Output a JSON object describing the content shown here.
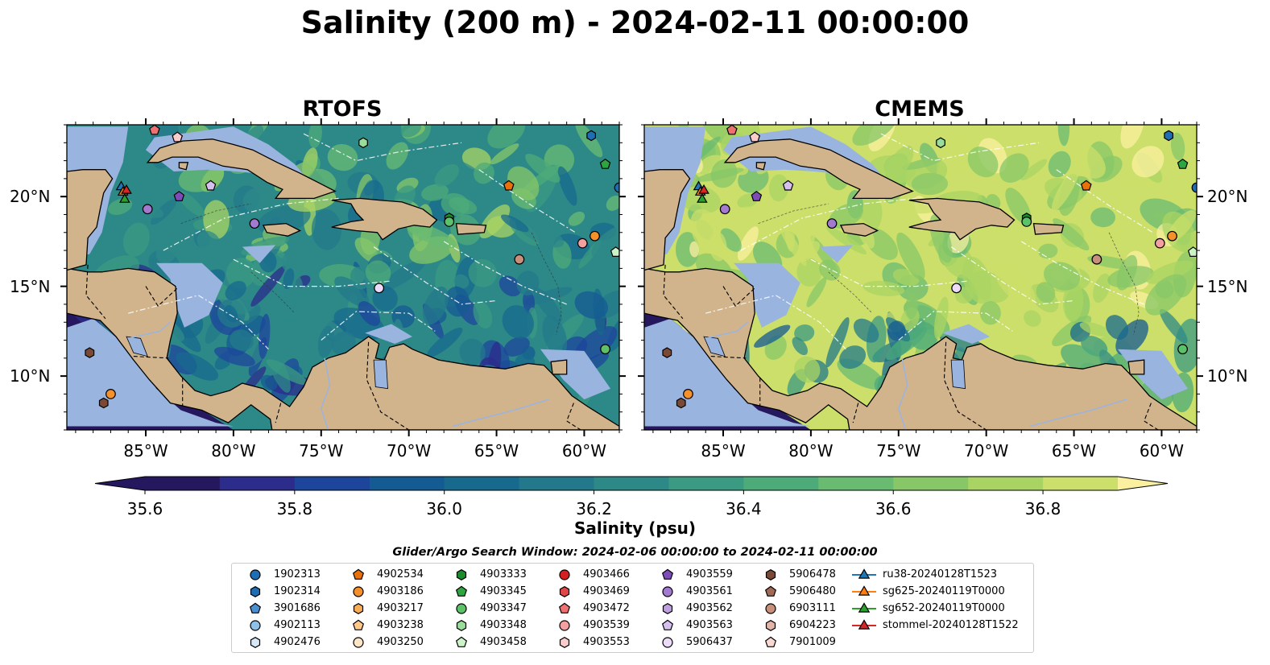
{
  "title": "Salinity (200 m) - 2024-02-11 00:00:00",
  "panels": [
    {
      "title": "RTOFS",
      "palette_bias": 0
    },
    {
      "title": "CMEMS",
      "palette_bias": 1
    }
  ],
  "map_extent": {
    "lon": [
      -89.5,
      -58.0
    ],
    "lat": [
      7.0,
      24.0
    ]
  },
  "lon_ticks": [
    "85°W",
    "80°W",
    "75°W",
    "70°W",
    "65°W",
    "60°W"
  ],
  "lat_ticks": [
    "20°N",
    "15°N",
    "10°N"
  ],
  "colorbar": {
    "label": "Salinity (psu)",
    "range": [
      35.6,
      36.9
    ],
    "ticks": [
      "35.6",
      "35.8",
      "36.0",
      "36.2",
      "36.4",
      "36.6",
      "36.8"
    ],
    "colors": [
      "#26185f",
      "#2b2c8c",
      "#1d459c",
      "#155b93",
      "#176a8d",
      "#23798b",
      "#2d8988",
      "#3b9a82",
      "#4dab7a",
      "#69bb72",
      "#87c768",
      "#a9d463",
      "#cbdf6a",
      "#fbf0a0"
    ]
  },
  "colors": {
    "land": "#d2b48c",
    "shelf": "#9ab4e0",
    "deep": "#26185f"
  },
  "search_window": "Glider/Argo Search Window: 2024-02-06 00:00:00 to 2024-02-11 00:00:00",
  "legend": [
    {
      "label": "1902313",
      "marker": "circle",
      "color": "#1f6db3"
    },
    {
      "label": "1902314",
      "marker": "hexagon",
      "color": "#1f6db3"
    },
    {
      "label": "3901686",
      "marker": "pentagon",
      "color": "#4a90d0"
    },
    {
      "label": "4902113",
      "marker": "circle",
      "color": "#8ec0e8"
    },
    {
      "label": "4902476",
      "marker": "hexagon",
      "color": "#d4e8f8"
    },
    {
      "label": "4902534",
      "marker": "pentagon",
      "color": "#e8710a"
    },
    {
      "label": "4903186",
      "marker": "circle",
      "color": "#f5902a"
    },
    {
      "label": "4903217",
      "marker": "hexagon",
      "color": "#f9ad55"
    },
    {
      "label": "4903238",
      "marker": "pentagon",
      "color": "#fdc88a"
    },
    {
      "label": "4903250",
      "marker": "circle",
      "color": "#fde6c8"
    },
    {
      "label": "4903333",
      "marker": "hexagon",
      "color": "#1d8a2e"
    },
    {
      "label": "4903345",
      "marker": "pentagon",
      "color": "#2da640"
    },
    {
      "label": "4903347",
      "marker": "circle",
      "color": "#5cc26a"
    },
    {
      "label": "4903348",
      "marker": "hexagon",
      "color": "#98dd9a"
    },
    {
      "label": "4903458",
      "marker": "pentagon",
      "color": "#ccf2c8"
    },
    {
      "label": "4903466",
      "marker": "circle",
      "color": "#d62020"
    },
    {
      "label": "4903469",
      "marker": "hexagon",
      "color": "#e04848"
    },
    {
      "label": "4903472",
      "marker": "pentagon",
      "color": "#ef7070"
    },
    {
      "label": "4903539",
      "marker": "circle",
      "color": "#f5a0a0"
    },
    {
      "label": "4903553",
      "marker": "hexagon",
      "color": "#fbcccc"
    },
    {
      "label": "4903559",
      "marker": "pentagon",
      "color": "#7e4cb8"
    },
    {
      "label": "4903561",
      "marker": "circle",
      "color": "#a47ad0"
    },
    {
      "label": "4903562",
      "marker": "hexagon",
      "color": "#bea0e0"
    },
    {
      "label": "4903563",
      "marker": "pentagon",
      "color": "#d6c0ef"
    },
    {
      "label": "5906437",
      "marker": "circle",
      "color": "#ecdcfa"
    },
    {
      "label": "5906478",
      "marker": "hexagon",
      "color": "#7a4a36"
    },
    {
      "label": "5906480",
      "marker": "pentagon",
      "color": "#a06a55"
    },
    {
      "label": "6903111",
      "marker": "circle",
      "color": "#c8907a"
    },
    {
      "label": "6904223",
      "marker": "hexagon",
      "color": "#e4b4a8"
    },
    {
      "label": "7901009",
      "marker": "pentagon",
      "color": "#f8d8d0"
    },
    {
      "label": "ru38-20240128T1523",
      "marker": "triangle-line",
      "color": "#1f77b4"
    },
    {
      "label": "sg625-20240119T0000",
      "marker": "triangle-line",
      "color": "#ff7f0e"
    },
    {
      "label": "sg652-20240119T0000",
      "marker": "triangle-line",
      "color": "#2ca02c"
    },
    {
      "label": "stommel-20240128T1522",
      "marker": "triangle-line",
      "color": "#d62728"
    }
  ],
  "markers": [
    {
      "lon": -84.5,
      "lat": 23.7,
      "marker": "pentagon",
      "color": "#ef7070"
    },
    {
      "lon": -83.2,
      "lat": 23.3,
      "marker": "pentagon",
      "color": "#fbcccc"
    },
    {
      "lon": -72.6,
      "lat": 23.0,
      "marker": "hexagon",
      "color": "#98dd9a"
    },
    {
      "lon": -59.6,
      "lat": 23.4,
      "marker": "hexagon",
      "color": "#1f6db3"
    },
    {
      "lon": -58.8,
      "lat": 21.8,
      "marker": "pentagon",
      "color": "#2da640"
    },
    {
      "lon": -64.3,
      "lat": 20.6,
      "marker": "pentagon",
      "color": "#e8710a"
    },
    {
      "lon": -58.0,
      "lat": 20.5,
      "marker": "circle",
      "color": "#1f6db3"
    },
    {
      "lon": -81.3,
      "lat": 20.6,
      "marker": "pentagon",
      "color": "#d6c0ef"
    },
    {
      "lon": -83.1,
      "lat": 20.0,
      "marker": "pentagon",
      "color": "#7e4cb8"
    },
    {
      "lon": -84.9,
      "lat": 19.3,
      "marker": "circle",
      "color": "#a47ad0"
    },
    {
      "lon": -78.8,
      "lat": 18.5,
      "marker": "circle",
      "color": "#a47ad0"
    },
    {
      "lon": -67.7,
      "lat": 18.8,
      "marker": "hexagon",
      "color": "#1d8a2e"
    },
    {
      "lon": -67.7,
      "lat": 18.6,
      "marker": "circle",
      "color": "#5cc26a"
    },
    {
      "lon": -59.4,
      "lat": 17.8,
      "marker": "circle",
      "color": "#f5902a"
    },
    {
      "lon": -60.1,
      "lat": 17.4,
      "marker": "circle",
      "color": "#f5a0a0"
    },
    {
      "lon": -58.2,
      "lat": 16.9,
      "marker": "pentagon",
      "color": "#ccf2c8"
    },
    {
      "lon": -63.7,
      "lat": 16.5,
      "marker": "circle",
      "color": "#c8907a"
    },
    {
      "lon": -71.7,
      "lat": 14.9,
      "marker": "circle",
      "color": "#ecdcfa"
    },
    {
      "lon": -58.8,
      "lat": 11.5,
      "marker": "circle",
      "color": "#5cc26a"
    },
    {
      "lon": -88.2,
      "lat": 11.3,
      "marker": "hexagon",
      "color": "#7a4a36"
    },
    {
      "lon": -87.0,
      "lat": 9.0,
      "marker": "circle",
      "color": "#f5902a"
    },
    {
      "lon": -87.4,
      "lat": 8.5,
      "marker": "hexagon",
      "color": "#7a4a36"
    },
    {
      "lon": -86.4,
      "lat": 20.6,
      "marker": "triangle",
      "color": "#1f77b4"
    },
    {
      "lon": -86.3,
      "lat": 20.3,
      "marker": "triangle",
      "color": "#ff7f0e"
    },
    {
      "lon": -86.2,
      "lat": 19.9,
      "marker": "triangle",
      "color": "#2ca02c"
    },
    {
      "lon": -86.1,
      "lat": 20.4,
      "marker": "triangle",
      "color": "#d62728"
    }
  ]
}
